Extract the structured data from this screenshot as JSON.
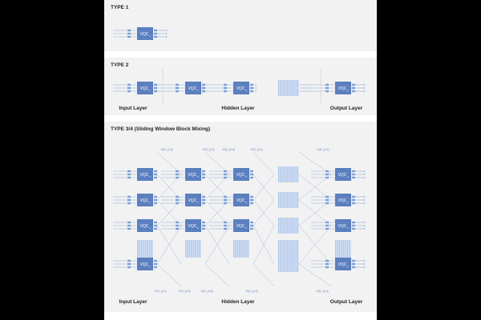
{
  "figure": {
    "panels": [
      {
        "title": "TYPE 1",
        "layer_labels": [],
        "module_label": "VQC",
        "module_subscript": "1"
      },
      {
        "title": "TYPE 2",
        "layer_labels": [
          "Input Layer",
          "Hidden Layer",
          "Output Layer"
        ],
        "module_label": "VQC",
        "module_subscripts": [
          "1",
          "2",
          "3",
          "n"
        ]
      },
      {
        "title": "TYPE 3/4 (Sliding Window Block Mixing)",
        "layer_labels": [
          "Input Layer",
          "Hidden Layer",
          "Output Layer"
        ],
        "module_label": "VQC",
        "top_labels": [
          "VQC_{1,2}",
          "VQC_{2,3}",
          "VQC_{2,n}",
          "VQC_{3,n}",
          "VQC_{n,1}"
        ],
        "bottom_labels": [
          "VQC_{n,1}",
          "VQC_{n,2}",
          "VQC_{n,3}",
          "VQC_{n,4}",
          "VQC_{n,n}"
        ]
      }
    ],
    "colors": {
      "module": "#5b7fbf",
      "module_text": "#ffffff",
      "port": "#7a9fd6",
      "wire": "#8ea8d8",
      "stripe": "#a9c1e8",
      "panel_bg": "#f2f2f2",
      "title": "#222222"
    }
  }
}
